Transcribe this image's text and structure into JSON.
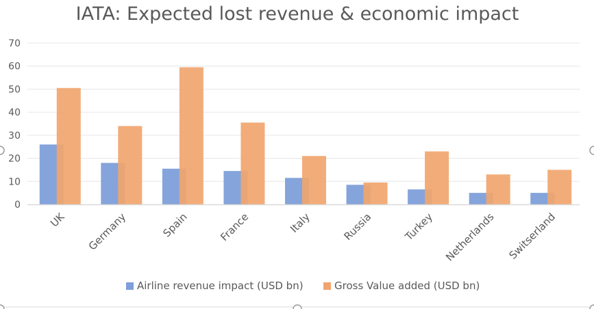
{
  "chart_data": {
    "type": "bar",
    "title": "IATA: Expected lost revenue & economic impact",
    "categories": [
      "UK",
      "Germany",
      "Spain",
      "France",
      "Italy",
      "Russia",
      "Turkey",
      "Netherlands",
      "Switserland"
    ],
    "series": [
      {
        "name": "Airline revenue impact (USD bn)",
        "color": "#7e9fd9",
        "values": [
          26,
          18,
          15.5,
          14.5,
          11.5,
          8.5,
          6.5,
          5,
          5
        ]
      },
      {
        "name": "Gross Value added (USD bn)",
        "color": "#f1a56e",
        "values": [
          50.5,
          34,
          59.5,
          35.5,
          21,
          9.5,
          23,
          13,
          15
        ]
      }
    ],
    "xlabel": "",
    "ylabel": "",
    "ylim": [
      0,
      70
    ],
    "yticks": [
      0,
      10,
      20,
      30,
      40,
      50,
      60,
      70
    ],
    "grid": true,
    "legend_position": "bottom"
  }
}
